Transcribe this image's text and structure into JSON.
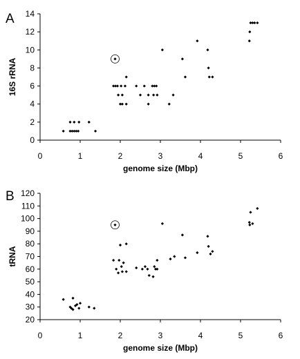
{
  "chart_data": [
    {
      "panel": "A",
      "type": "scatter",
      "xlabel": "genome size (Mbp)",
      "ylabel": "16S rRNA",
      "xlim": [
        0,
        6
      ],
      "ylim": [
        0,
        14
      ],
      "xticks": [
        "0",
        "1",
        "2",
        "3",
        "4",
        "5",
        "6"
      ],
      "yticks": [
        "0",
        "2",
        "4",
        "6",
        "8",
        "10",
        "12",
        "14"
      ],
      "grid": false,
      "highlighted_point": {
        "x": 1.87,
        "y": 9
      },
      "points": [
        [
          0.58,
          1
        ],
        [
          0.75,
          1
        ],
        [
          0.8,
          1
        ],
        [
          0.85,
          1
        ],
        [
          0.9,
          1
        ],
        [
          0.95,
          1
        ],
        [
          1.38,
          1
        ],
        [
          0.75,
          2
        ],
        [
          0.85,
          2
        ],
        [
          0.97,
          2
        ],
        [
          1.22,
          2
        ],
        [
          1.87,
          9
        ],
        [
          1.83,
          6
        ],
        [
          1.88,
          6
        ],
        [
          1.93,
          6
        ],
        [
          2.02,
          6
        ],
        [
          2.12,
          6
        ],
        [
          2.4,
          6
        ],
        [
          2.6,
          6
        ],
        [
          2.8,
          6
        ],
        [
          2.85,
          6
        ],
        [
          2.9,
          6
        ],
        [
          1.95,
          5
        ],
        [
          2.05,
          5
        ],
        [
          2.5,
          5
        ],
        [
          2.7,
          5
        ],
        [
          2.83,
          5
        ],
        [
          2.92,
          5
        ],
        [
          3.32,
          5
        ],
        [
          2.0,
          4
        ],
        [
          2.05,
          4
        ],
        [
          2.15,
          4
        ],
        [
          2.7,
          4
        ],
        [
          3.22,
          4
        ],
        [
          2.15,
          7
        ],
        [
          3.05,
          10
        ],
        [
          3.55,
          9
        ],
        [
          3.62,
          7
        ],
        [
          3.92,
          11
        ],
        [
          4.18,
          10
        ],
        [
          4.2,
          8
        ],
        [
          4.22,
          7
        ],
        [
          4.3,
          7
        ],
        [
          5.22,
          11
        ],
        [
          5.23,
          12
        ],
        [
          5.25,
          13
        ],
        [
          5.3,
          13
        ],
        [
          5.35,
          13
        ],
        [
          5.42,
          13
        ]
      ]
    },
    {
      "panel": "B",
      "type": "scatter",
      "xlabel": "genome size (Mbp)",
      "ylabel": "tRNA",
      "xlim": [
        0,
        6
      ],
      "ylim": [
        20,
        120
      ],
      "xticks": [
        "0",
        "1",
        "2",
        "3",
        "4",
        "5",
        "6"
      ],
      "yticks": [
        "20",
        "30",
        "40",
        "50",
        "60",
        "70",
        "80",
        "90",
        "100",
        "110",
        "120"
      ],
      "grid": false,
      "highlighted_point": {
        "x": 1.87,
        "y": 95
      },
      "points": [
        [
          0.58,
          36
        ],
        [
          0.75,
          30
        ],
        [
          0.78,
          29
        ],
        [
          0.82,
          28
        ],
        [
          0.82,
          37
        ],
        [
          0.88,
          31
        ],
        [
          0.92,
          32
        ],
        [
          0.97,
          29
        ],
        [
          1.0,
          33
        ],
        [
          1.22,
          30
        ],
        [
          1.35,
          29
        ],
        [
          1.87,
          95
        ],
        [
          1.83,
          67
        ],
        [
          1.9,
          60
        ],
        [
          1.95,
          57
        ],
        [
          1.97,
          67
        ],
        [
          2.0,
          79
        ],
        [
          2.03,
          62
        ],
        [
          2.08,
          65
        ],
        [
          2.05,
          58
        ],
        [
          2.15,
          58
        ],
        [
          2.15,
          80
        ],
        [
          2.4,
          61
        ],
        [
          2.55,
          60
        ],
        [
          2.62,
          62
        ],
        [
          2.68,
          60
        ],
        [
          2.72,
          55
        ],
        [
          2.82,
          54
        ],
        [
          2.85,
          62
        ],
        [
          2.88,
          60
        ],
        [
          2.92,
          60
        ],
        [
          2.92,
          67
        ],
        [
          3.05,
          96
        ],
        [
          3.25,
          68
        ],
        [
          3.35,
          70
        ],
        [
          3.55,
          87
        ],
        [
          3.62,
          69
        ],
        [
          3.92,
          73
        ],
        [
          4.18,
          86
        ],
        [
          4.2,
          78
        ],
        [
          4.25,
          72
        ],
        [
          4.3,
          74
        ],
        [
          5.22,
          97
        ],
        [
          5.23,
          95
        ],
        [
          5.25,
          105
        ],
        [
          5.3,
          96
        ],
        [
          5.42,
          108
        ]
      ]
    }
  ]
}
